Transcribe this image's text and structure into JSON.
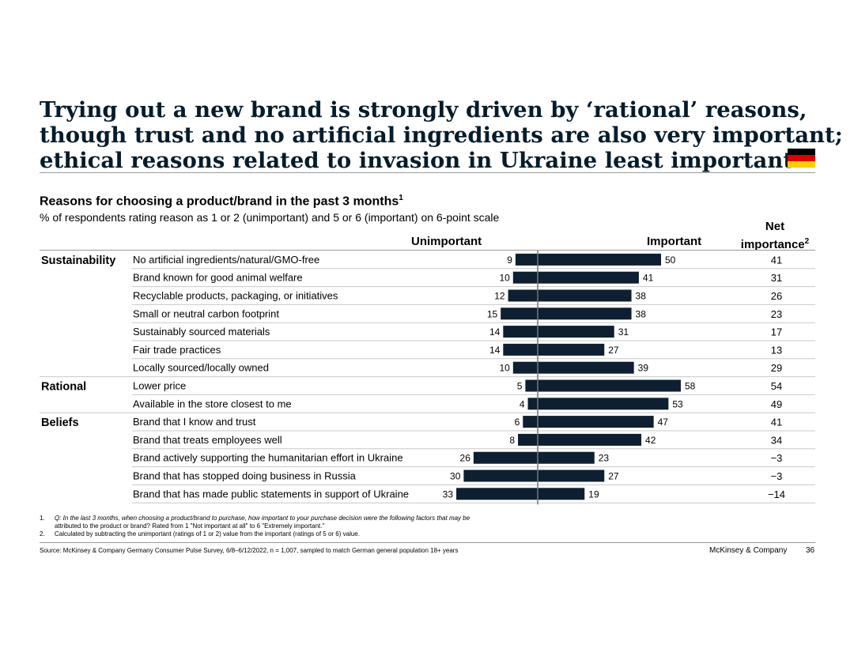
{
  "title_lines": [
    "Trying out a new brand is strongly driven by ‘rational’ reasons,",
    "though trust and no artificial ingredients are also very important;",
    "ethical reasons related to invasion in Ukraine least important"
  ],
  "flag_icon": "germany-flag-icon",
  "flag_colors": [
    "#000000",
    "#dd0000",
    "#ffce00"
  ],
  "subtitle": "Reasons for choosing a product/brand in the past 3 months",
  "subtitle_sup": "1",
  "subnote": "% of respondents rating reason as 1 or 2 (unimportant) and 5 or 6 (important) on 6-point scale",
  "columns": {
    "unimportant": "Unimportant",
    "important": "Important",
    "net_line1": "Net",
    "net_line2": "importance",
    "net_sup": "2"
  },
  "chart_data": {
    "type": "bar",
    "subtype": "diverging-horizontal",
    "bar_color": "#0d1f30",
    "groups": [
      {
        "name": "Sustainability",
        "start": 0
      },
      {
        "name": "Rational",
        "start": 7
      },
      {
        "name": "Beliefs",
        "start": 9
      }
    ],
    "categories": [
      "No artificial ingredients/natural/GMO-free",
      "Brand known for good animal welfare",
      "Recyclable products, packaging, or initiatives",
      "Small or neutral carbon footprint",
      "Sustainably sourced materials",
      "Fair trade practices",
      "Locally sourced/locally owned",
      "Lower price",
      "Available in the store closest to me",
      "Brand that I know and trust",
      "Brand that treats employees well",
      "Brand actively supporting the humanitarian effort in Ukraine",
      "Brand that has stopped doing business in Russia",
      "Brand that has made public statements in support of Ukraine"
    ],
    "series": [
      {
        "name": "Unimportant",
        "values": [
          9,
          10,
          12,
          15,
          14,
          14,
          10,
          5,
          4,
          6,
          8,
          26,
          30,
          33
        ]
      },
      {
        "name": "Important",
        "values": [
          50,
          41,
          38,
          38,
          31,
          27,
          39,
          58,
          53,
          47,
          42,
          23,
          27,
          19
        ]
      }
    ],
    "net_importance": [
      "41",
      "31",
      "26",
      "23",
      "17",
      "13",
      "29",
      "54",
      "49",
      "41",
      "34",
      "−3",
      "−3",
      "−14"
    ]
  },
  "footnotes": [
    {
      "num": "1.",
      "lines": [
        "Q: In the last 3 months, when choosing a product/brand to purchase, how important to your purchase decision were the following factors that may be",
        "attributed to the product or brand? Rated from 1 \"Not important at all\" to 6 \"Extremely important.\""
      ]
    },
    {
      "num": "2.",
      "lines": [
        "Calculated by subtracting the unimportant (ratings of 1 or 2) value from the important (ratings of 5 or 6) value."
      ]
    }
  ],
  "source": "Source: McKinsey & Company Germany Consumer Pulse Survey, 6/8–6/12/2022, n = 1,007, sampled to match German general population 18+ years",
  "brand": "McKinsey & Company",
  "page_number": "36"
}
